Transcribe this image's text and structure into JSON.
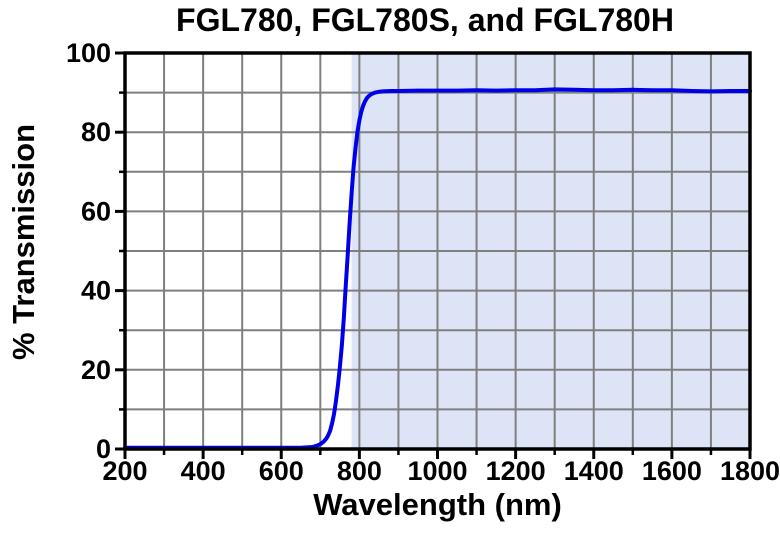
{
  "chart": {
    "title": "FGL780, FGL780S, and FGL780H",
    "xlabel": "Wavelength (nm)",
    "ylabel": "% Transmission"
  },
  "colors": {
    "background": "#ffffff",
    "curve": "#0000e8",
    "shaded_band": "#dce4f6",
    "gridline": "#7f7f7f",
    "frame": "#000000",
    "text": "#000000"
  },
  "chart_data": {
    "type": "line",
    "title": "FGL780, FGL780S, and FGL780H",
    "xlabel": "Wavelength (nm)",
    "ylabel": "% Transmission",
    "xlim": [
      200,
      1800
    ],
    "ylim": [
      0,
      100
    ],
    "grid": true,
    "grid_step_x": 100,
    "grid_step_y": 10,
    "legend_position": "none",
    "x_ticks": [
      {
        "v": 200,
        "label": "200"
      },
      {
        "v": 400,
        "label": "400"
      },
      {
        "v": 600,
        "label": "600"
      },
      {
        "v": 800,
        "label": "800"
      },
      {
        "v": 1000,
        "label": "1000"
      },
      {
        "v": 1200,
        "label": "1200"
      },
      {
        "v": 1400,
        "label": "1400"
      },
      {
        "v": 1600,
        "label": "1600"
      },
      {
        "v": 1800,
        "label": "1800"
      }
    ],
    "x_minor_ticks": [
      300,
      500,
      700,
      900,
      1100,
      1300,
      1500,
      1700
    ],
    "y_ticks": [
      {
        "v": 0,
        "label": "0"
      },
      {
        "v": 20,
        "label": "20"
      },
      {
        "v": 40,
        "label": "40"
      },
      {
        "v": 60,
        "label": "60"
      },
      {
        "v": 80,
        "label": "80"
      },
      {
        "v": 100,
        "label": "100"
      }
    ],
    "y_minor_ticks": [
      10,
      30,
      50,
      70,
      90
    ],
    "shaded_band": {
      "x_start": 780,
      "x_end": 1800,
      "color": "#dce4f6",
      "meaning": "transmission region above cut-on wavelength"
    },
    "series": [
      {
        "name": "FGL780 / FGL780S / FGL780H transmission",
        "color": "#0000e8",
        "points": [
          [
            200,
            0.3
          ],
          [
            250,
            0.3
          ],
          [
            300,
            0.3
          ],
          [
            350,
            0.3
          ],
          [
            400,
            0.3
          ],
          [
            450,
            0.3
          ],
          [
            500,
            0.3
          ],
          [
            550,
            0.3
          ],
          [
            600,
            0.3
          ],
          [
            625,
            0.3
          ],
          [
            650,
            0.3
          ],
          [
            665,
            0.4
          ],
          [
            680,
            0.5
          ],
          [
            690,
            0.8
          ],
          [
            700,
            1.2
          ],
          [
            708,
            1.8
          ],
          [
            715,
            2.6
          ],
          [
            720,
            3.4
          ],
          [
            725,
            4.6
          ],
          [
            730,
            6.4
          ],
          [
            735,
            8.8
          ],
          [
            740,
            12.0
          ],
          [
            745,
            16.0
          ],
          [
            750,
            20.5
          ],
          [
            755,
            26.0
          ],
          [
            760,
            33.0
          ],
          [
            765,
            41.0
          ],
          [
            770,
            49.0
          ],
          [
            775,
            57.0
          ],
          [
            780,
            64.5
          ],
          [
            785,
            71.0
          ],
          [
            790,
            76.0
          ],
          [
            795,
            80.0
          ],
          [
            800,
            83.0
          ],
          [
            805,
            85.2
          ],
          [
            810,
            86.8
          ],
          [
            815,
            87.9
          ],
          [
            820,
            88.7
          ],
          [
            825,
            89.2
          ],
          [
            830,
            89.6
          ],
          [
            840,
            90.0
          ],
          [
            850,
            90.2
          ],
          [
            860,
            90.3
          ],
          [
            880,
            90.4
          ],
          [
            900,
            90.4
          ],
          [
            950,
            90.5
          ],
          [
            1000,
            90.5
          ],
          [
            1050,
            90.5
          ],
          [
            1100,
            90.6
          ],
          [
            1150,
            90.5
          ],
          [
            1200,
            90.6
          ],
          [
            1250,
            90.6
          ],
          [
            1300,
            90.8
          ],
          [
            1350,
            90.7
          ],
          [
            1400,
            90.6
          ],
          [
            1450,
            90.6
          ],
          [
            1500,
            90.7
          ],
          [
            1550,
            90.6
          ],
          [
            1600,
            90.6
          ],
          [
            1650,
            90.4
          ],
          [
            1700,
            90.3
          ],
          [
            1750,
            90.4
          ],
          [
            1800,
            90.4
          ]
        ]
      }
    ]
  }
}
